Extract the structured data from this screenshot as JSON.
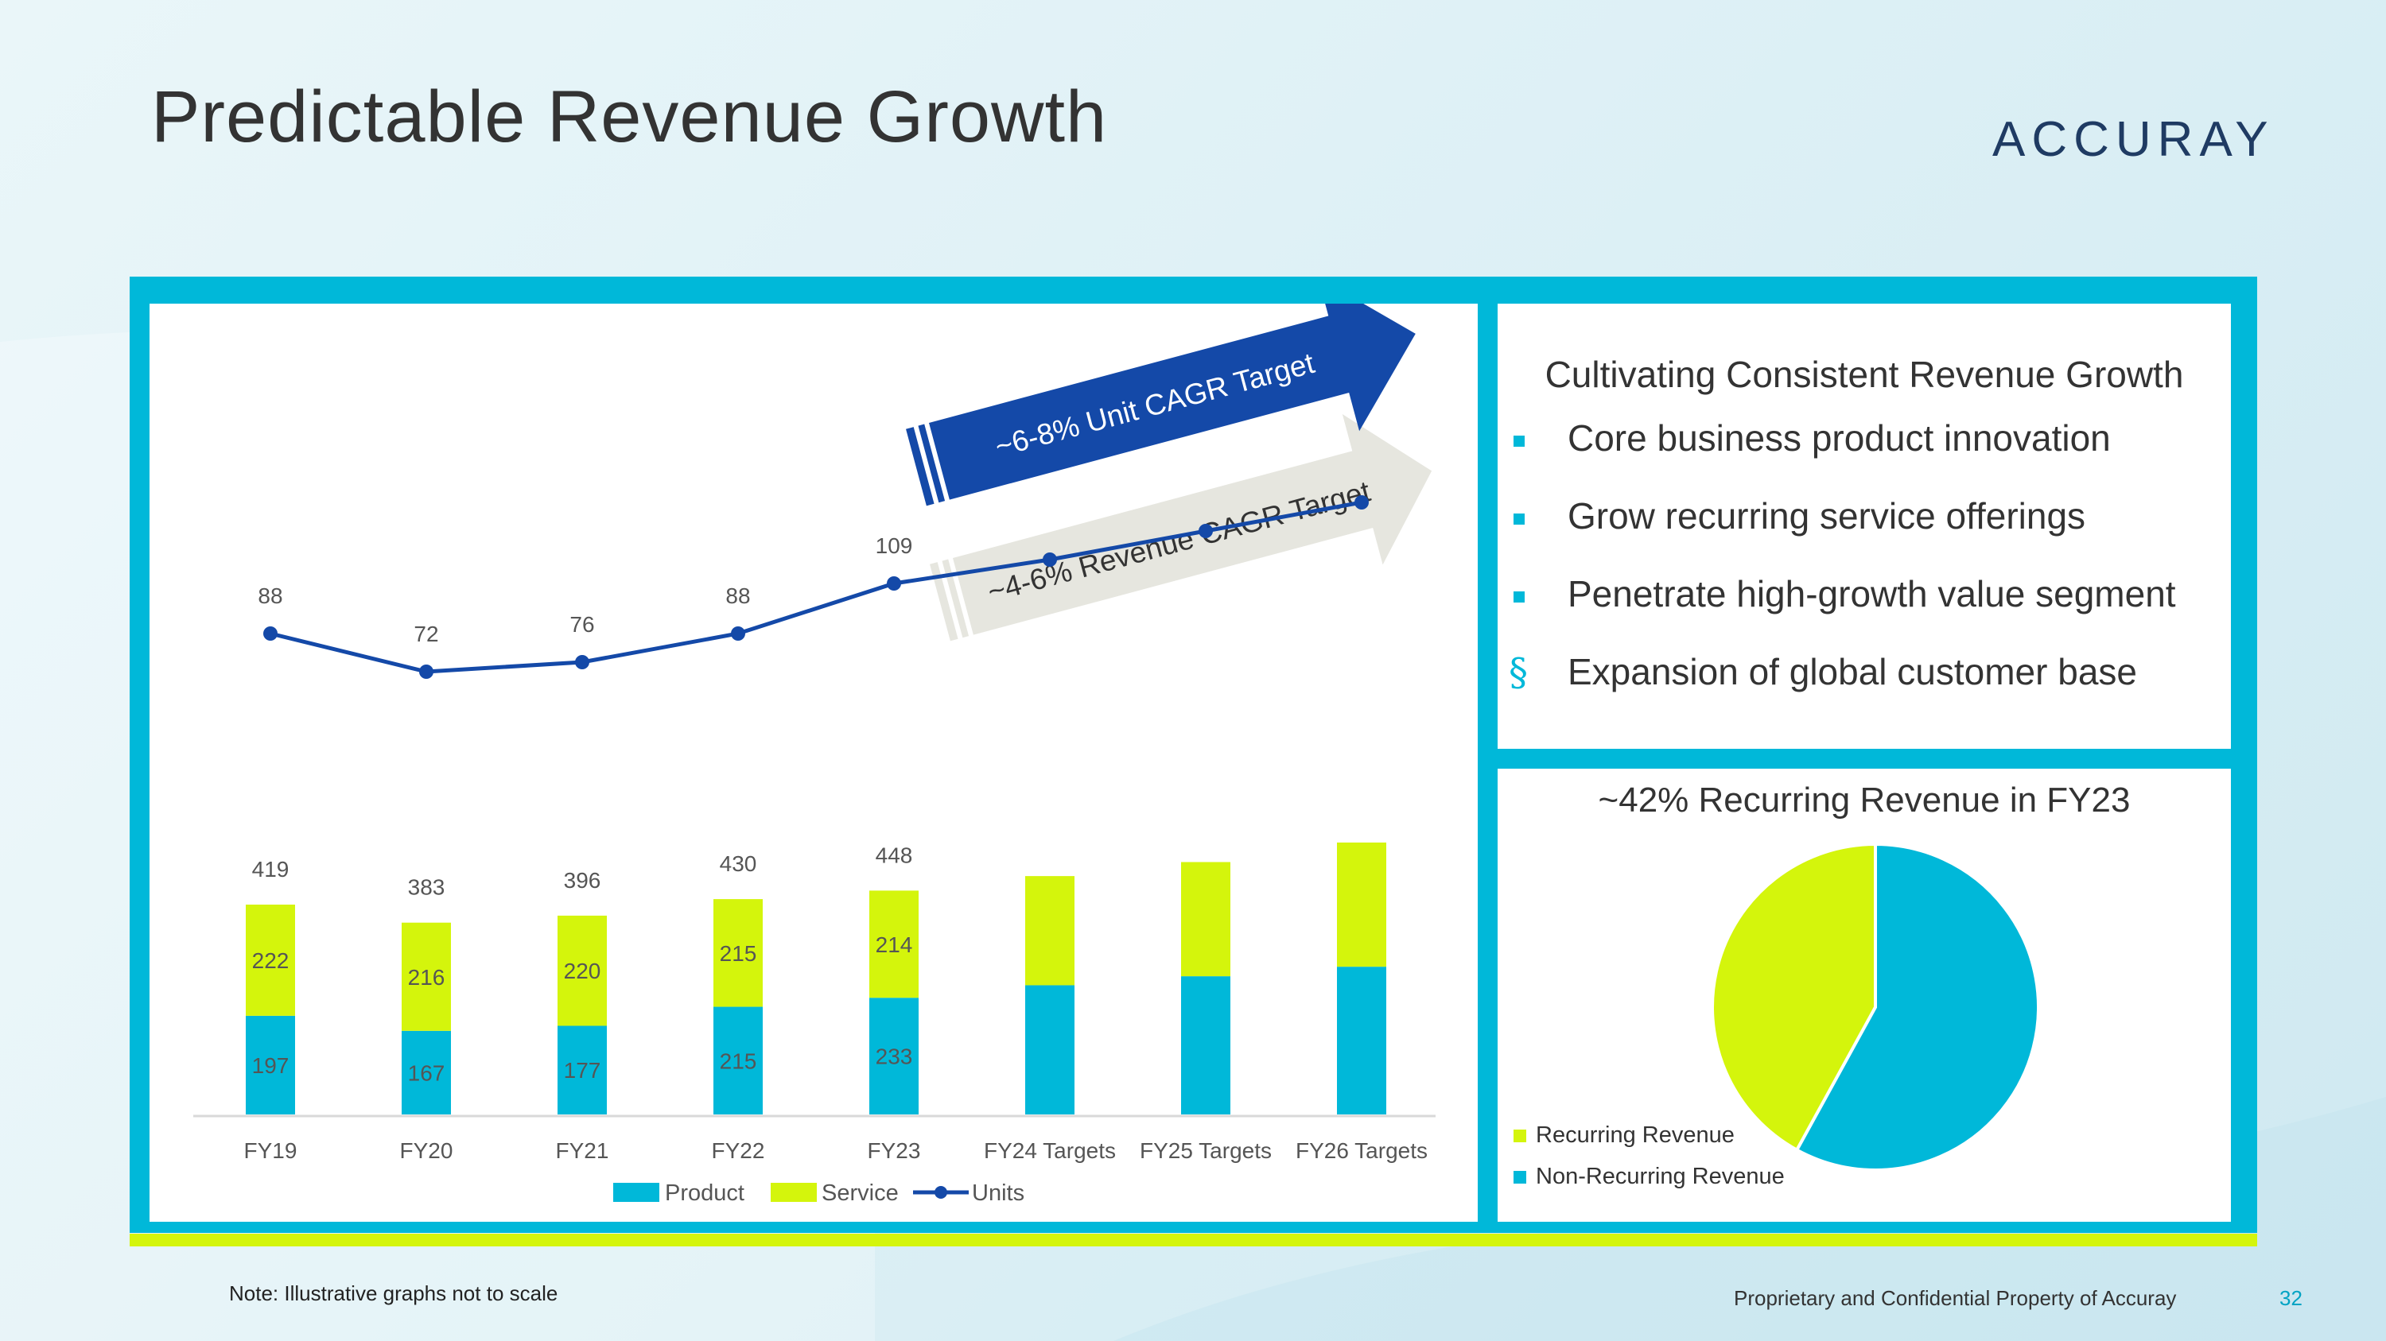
{
  "page": {
    "title": "Predictable Revenue Growth",
    "logo": "ACCURAY",
    "note": "Note:  Illustrative graphs not to scale",
    "footer": "Proprietary and Confidential Property of Accuray",
    "page_number": "32"
  },
  "colors": {
    "product": "#00b8d9",
    "service": "#d4f50c",
    "units": "#1449a8",
    "arrow_unit": "#1449a8",
    "arrow_revenue": "#e6e6df"
  },
  "arrows": {
    "unit": "~6-8% Unit CAGR Target",
    "revenue": "~4-6% Revenue CAGR Target"
  },
  "chart_data": {
    "type": "bar",
    "stacked": true,
    "categories": [
      "FY19",
      "FY20",
      "FY21",
      "FY22",
      "FY23",
      "FY24 Targets",
      "FY25 Targets",
      "FY26 Targets"
    ],
    "series": [
      {
        "name": "Product",
        "values": [
          197,
          167,
          177,
          215,
          233,
          258,
          276,
          295
        ]
      },
      {
        "name": "Service",
        "values": [
          222,
          216,
          220,
          215,
          214,
          218,
          228,
          248
        ]
      }
    ],
    "totals": [
      419,
      383,
      396,
      430,
      448,
      null,
      null,
      null
    ],
    "line_series": {
      "name": "Units",
      "values": [
        88,
        72,
        76,
        88,
        109,
        119,
        131,
        143
      ],
      "labels": [
        88,
        72,
        76,
        88,
        109,
        null,
        null,
        null
      ]
    },
    "legend": [
      "Product",
      "Service",
      "Units"
    ],
    "legend_position": "bottom",
    "note": "Illustrative graphs not to scale"
  },
  "right_top": {
    "title": "Cultivating Consistent Revenue Growth",
    "bullets": [
      {
        "text": "Core business product innovation",
        "style": "square"
      },
      {
        "text": "Grow recurring service offerings",
        "style": "square"
      },
      {
        "text": "Penetrate high-growth value segment",
        "style": "square"
      },
      {
        "text": "Expansion of global customer base",
        "style": "section"
      }
    ],
    "section_mark": "§"
  },
  "pie": {
    "title": "~42% Recurring Revenue in FY23",
    "slices": [
      {
        "name": "Recurring Revenue",
        "value": 42,
        "color": "#d4f50c"
      },
      {
        "name": "Non-Recurring Revenue",
        "value": 58,
        "color": "#00b8d9"
      }
    ]
  }
}
